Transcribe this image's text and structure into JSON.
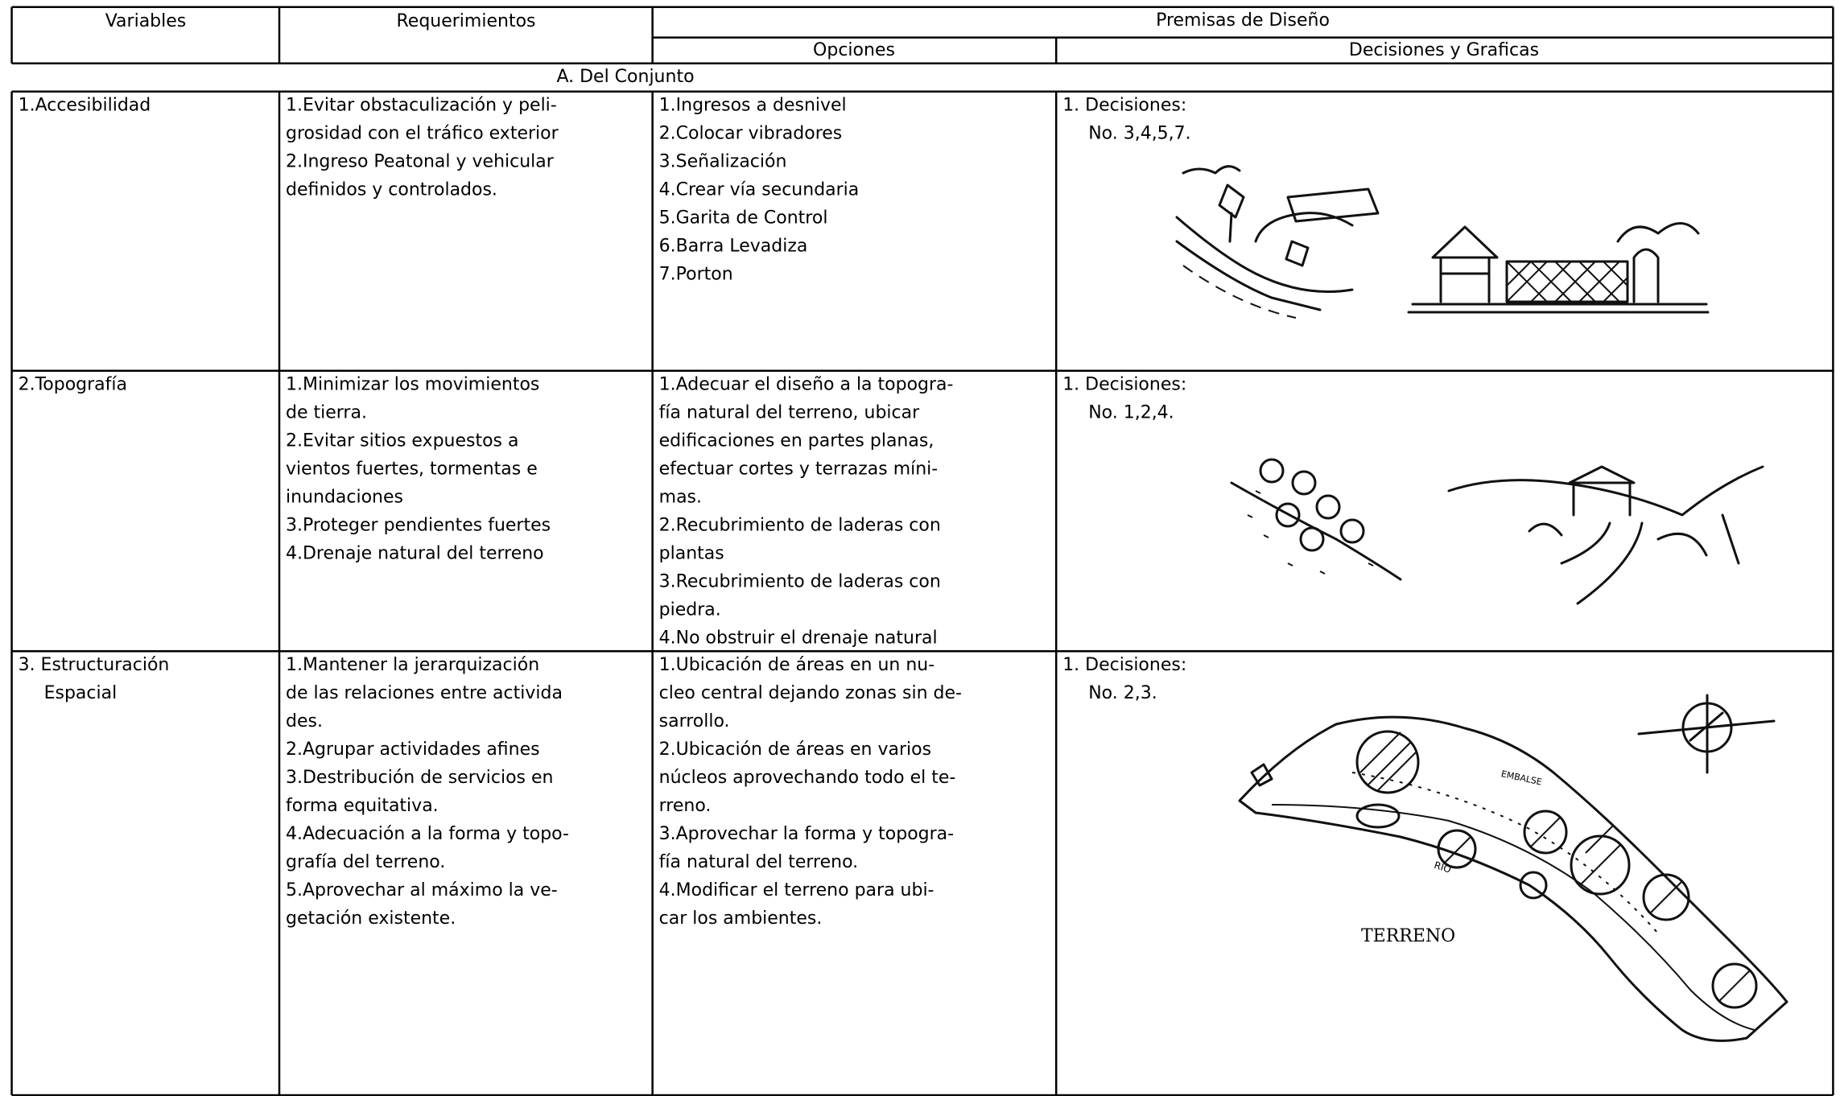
{
  "header": {
    "columns": [
      "Variables",
      "Requerimientos",
      "Premisas de Diseño"
    ],
    "subcolumns": [
      "Opciones",
      "Decisiones y Graficas"
    ]
  },
  "section": "A. Del Conjunto",
  "rows": [
    {
      "variable": [
        "1.Accesibilidad"
      ],
      "requirements": [
        "1.Evitar obstaculización y peli-",
        "grosidad con el tráfico exterior",
        "2.Ingreso Peatonal y vehicular",
        "definidos y controlados."
      ],
      "options": [
        "1.Ingresos a desnivel",
        "2.Colocar vibradores",
        "3.Señalización",
        "4.Crear vía secundaria",
        "5.Garita de Control",
        "6.Barra Levadiza",
        "7.Porton"
      ],
      "decisions": [
        "1. Decisiones:",
        "No. 3,4,5,7."
      ]
    },
    {
      "variable": [
        "2.Topografía"
      ],
      "requirements": [
        "1.Minimizar los movimientos",
        "de tierra.",
        "2.Evitar sitios expuestos a",
        "vientos fuertes, tormentas e",
        "inundaciones",
        "3.Proteger pendientes fuertes",
        "4.Drenaje natural del terreno"
      ],
      "options": [
        "1.Adecuar el diseño a la topogra-",
        "fía natural del terreno, ubicar",
        "edificaciones en partes planas,",
        "efectuar cortes y terrazas míni-",
        "mas.",
        "2.Recubrimiento de laderas con",
        "plantas",
        "3.Recubrimiento de laderas con",
        "piedra.",
        "4.No obstruir el drenaje natural"
      ],
      "decisions": [
        "1. Decisiones:",
        "No. 1,2,4."
      ]
    },
    {
      "variable": [
        "3. Estructuración",
        "Espacial"
      ],
      "requirements": [
        "1.Mantener la jerarquización",
        "de las relaciones entre activida",
        "des.",
        "2.Agrupar actividades afines",
        "3.Destribución de servicios en",
        "forma equitativa.",
        "4.Adecuación a la forma y topo-",
        "grafía del terreno.",
        "5.Aprovechar al máximo la ve-",
        "getación existente."
      ],
      "options": [
        "1.Ubicación de áreas en un nu-",
        "cleo central dejando zonas sin de-",
        "sarrollo.",
        "2.Ubicación de áreas en varios",
        "núcleos aprovechando todo el te-",
        "rreno.",
        "3.Aprovechar la forma y topogra-",
        "fía natural del terreno.",
        "4.Modificar el terreno para ubi-",
        "car los ambientes."
      ],
      "decisions": [
        "1. Decisiones:",
        "No. 2,3."
      ]
    }
  ],
  "drawings": {
    "terreno": "TERRENO",
    "embalse": "EMBALSE",
    "rio": "RIO"
  }
}
